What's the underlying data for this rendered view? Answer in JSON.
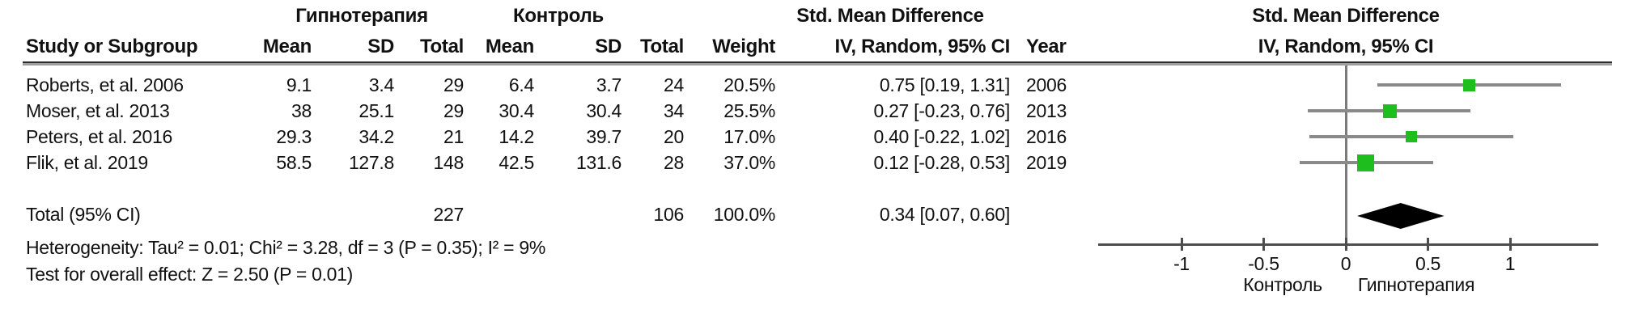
{
  "table": {
    "group_headers": {
      "treatment": "Гипнотерапия",
      "control": "Контроль",
      "smd": "Std. Mean Difference",
      "method": "IV, Random, 95% CI"
    },
    "columns": {
      "study": "Study or Subgroup",
      "mean1": "Mean",
      "sd1": "SD",
      "total1": "Total",
      "mean2": "Mean",
      "sd2": "SD",
      "total2": "Total",
      "weight": "Weight",
      "ci": "IV, Random, 95% CI",
      "year": "Year"
    },
    "rows": [
      {
        "study": "Roberts, et al. 2006",
        "mean1": "9.1",
        "sd1": "3.4",
        "total1": "29",
        "mean2": "6.4",
        "sd2": "3.7",
        "total2": "24",
        "weight": "20.5%",
        "ci": "0.75 [0.19, 1.31]",
        "year": "2006"
      },
      {
        "study": "Moser, et al. 2013",
        "mean1": "38",
        "sd1": "25.1",
        "total1": "29",
        "mean2": "30.4",
        "sd2": "30.4",
        "total2": "34",
        "weight": "25.5%",
        "ci": "0.27 [-0.23, 0.76]",
        "year": "2013"
      },
      {
        "study": "Peters, et al. 2016",
        "mean1": "29.3",
        "sd1": "34.2",
        "total1": "21",
        "mean2": "14.2",
        "sd2": "39.7",
        "total2": "20",
        "weight": "17.0%",
        "ci": "0.40 [-0.22, 1.02]",
        "year": "2016"
      },
      {
        "study": "Flik, et al. 2019",
        "mean1": "58.5",
        "sd1": "127.8",
        "total1": "148",
        "mean2": "42.5",
        "sd2": "131.6",
        "total2": "28",
        "weight": "37.0%",
        "ci": "0.12 [-0.28, 0.53]",
        "year": "2019"
      }
    ],
    "total_row": {
      "label": "Total (95% CI)",
      "total1": "227",
      "total2": "106",
      "weight": "100.0%",
      "ci": "0.34 [0.07, 0.60]"
    }
  },
  "footer": {
    "heterogeneity": "Heterogeneity: Tau² = 0.01; Chi² = 3.28, df = 3 (P = 0.35); I² = 9%",
    "overall_effect": "Test for overall effect: Z = 2.50 (P = 0.01)"
  },
  "chart_data": {
    "type": "forest",
    "effect_measure": "Std. Mean Difference, IV, Random, 95% CI",
    "studies": [
      {
        "name": "Roberts, et al. 2006",
        "est": 0.75,
        "lo": 0.19,
        "hi": 1.31,
        "weight_pct": 20.5,
        "year": 2006
      },
      {
        "name": "Moser, et al. 2013",
        "est": 0.27,
        "lo": -0.23,
        "hi": 0.76,
        "weight_pct": 25.5,
        "year": 2013
      },
      {
        "name": "Peters, et al. 2016",
        "est": 0.4,
        "lo": -0.22,
        "hi": 1.02,
        "weight_pct": 17.0,
        "year": 2016
      },
      {
        "name": "Flik, et al. 2019",
        "est": 0.12,
        "lo": -0.28,
        "hi": 0.53,
        "weight_pct": 37.0,
        "year": 2019
      }
    ],
    "total": {
      "label": "Total (95% CI)",
      "est": 0.34,
      "lo": 0.07,
      "hi": 0.6
    },
    "axis": {
      "ticks": [
        -1,
        -0.5,
        0,
        0.5,
        1
      ],
      "xlim": [
        -1.5,
        1.55
      ],
      "favours_left_label": "Контроль",
      "favours_right_label": "Гипнотерапия"
    },
    "marker_color": "#1fbe1f",
    "ci_line_color": "#8a8a8a",
    "diamond_color": "#000000"
  }
}
